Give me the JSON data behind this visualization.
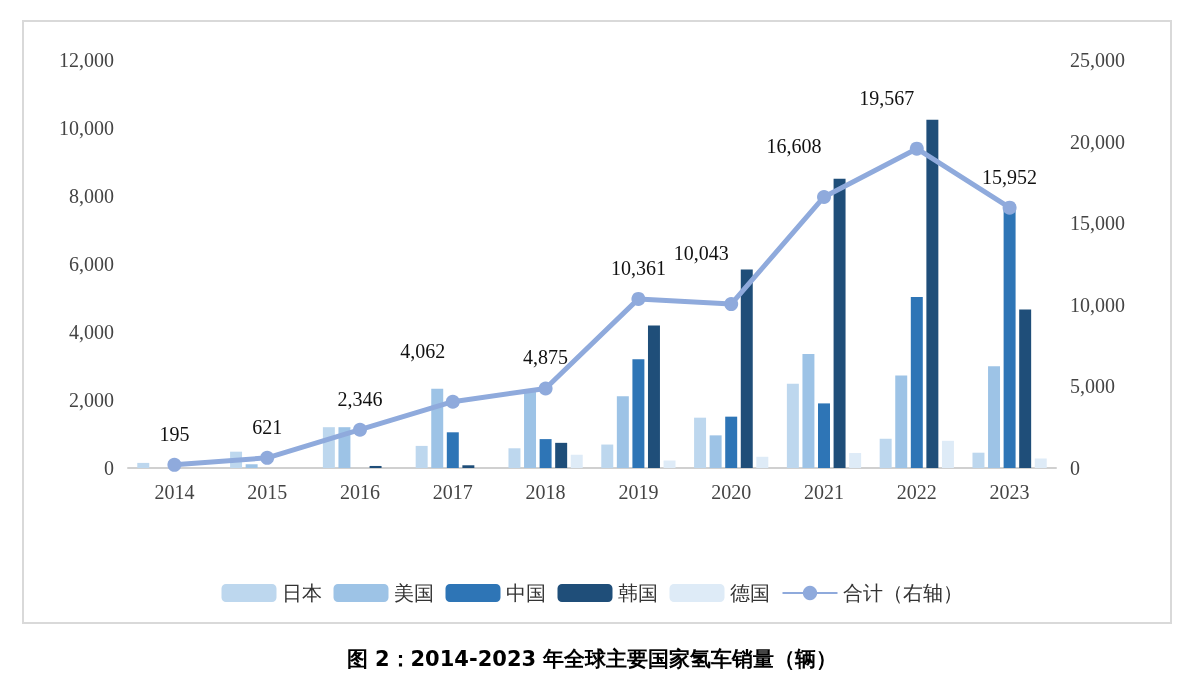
{
  "chart_data": {
    "type": "bar",
    "title": "图 2：2014-2023 年全球主要国家氢车销量（辆）",
    "categories": [
      "2014",
      "2015",
      "2016",
      "2017",
      "2018",
      "2019",
      "2020",
      "2021",
      "2022",
      "2023"
    ],
    "series": [
      {
        "name": "日本",
        "color": "#bdd7ee",
        "values": [
          150,
          480,
          1200,
          650,
          580,
          690,
          1480,
          2480,
          860,
          450
        ]
      },
      {
        "name": "美国",
        "color": "#9dc3e6",
        "values": [
          null,
          110,
          1200,
          2330,
          2250,
          2110,
          960,
          3350,
          2720,
          2990
        ]
      },
      {
        "name": "中国",
        "color": "#2e75b6",
        "values": [
          0,
          0,
          0,
          1050,
          850,
          3200,
          1510,
          1900,
          5030,
          7750
        ]
      },
      {
        "name": "韩国",
        "color": "#1f4e79",
        "values": [
          0,
          0,
          60,
          80,
          740,
          4190,
          5840,
          8510,
          10240,
          4660
        ]
      },
      {
        "name": "德国",
        "color": "#deebf7",
        "values": [
          0,
          0,
          0,
          0,
          390,
          220,
          330,
          440,
          800,
          280
        ]
      },
      {
        "name": "合计（右轴）",
        "type": "line",
        "axis": "y2",
        "color": "#8faadc",
        "values": [
          195,
          621,
          2346,
          4062,
          4875,
          10361,
          10043,
          16608,
          19567,
          15952
        ],
        "value_labels": [
          "195",
          "621",
          "2,346",
          "4,062",
          "4,875",
          "10,361",
          "10,043",
          "16,608",
          "19,567",
          "15,952"
        ]
      }
    ],
    "ylim": [
      0,
      12000
    ],
    "yticks": [
      0,
      {
        "value": 2000,
        "label": "2,000"
      },
      {
        "value": 4000,
        "label": "4,000"
      },
      {
        "value": 6000,
        "label": "6,000"
      },
      {
        "value": 8000,
        "label": "8,000"
      },
      {
        "value": 10000,
        "label": "10,000"
      },
      {
        "value": 12000,
        "label": "12,000"
      }
    ],
    "y2lim": [
      0,
      25000
    ],
    "y2ticks": [
      0,
      {
        "value": 5000,
        "label": "5,000"
      },
      {
        "value": 10000,
        "label": "10,000"
      },
      {
        "value": 15000,
        "label": "15,000"
      },
      {
        "value": 20000,
        "label": "20,000"
      },
      {
        "value": 25000,
        "label": "25,000"
      }
    ],
    "marker": "circle",
    "grid": false,
    "legend": "bottom"
  }
}
